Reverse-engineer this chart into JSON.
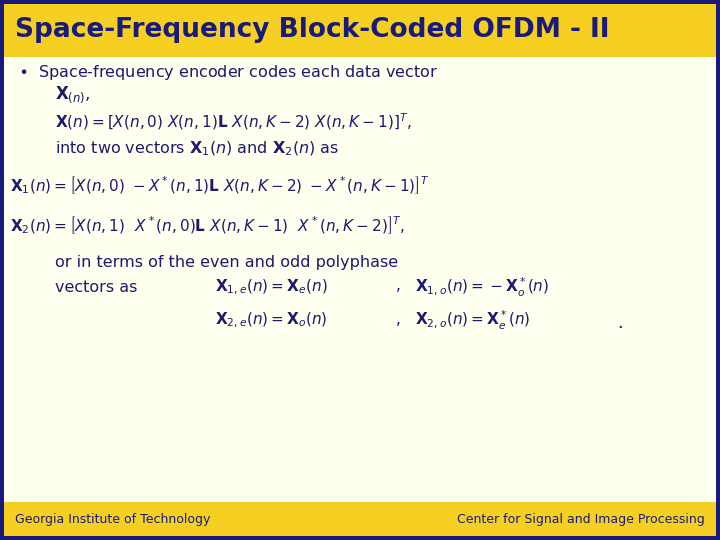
{
  "title": "Space-Frequency Block-Coded OFDM - II",
  "title_bg": "#f5d020",
  "title_color": "#1a1a7a",
  "slide_bg": "#fffff0",
  "border_color": "#c8a000",
  "outer_border": "#1a1a7a",
  "footer_bg": "#f5d020",
  "footer_left": "Georgia Institute of Technology",
  "footer_right": "Center for Signal and Image Processing",
  "footer_color": "#1a1a7a",
  "body_color": "#1a1a6e"
}
